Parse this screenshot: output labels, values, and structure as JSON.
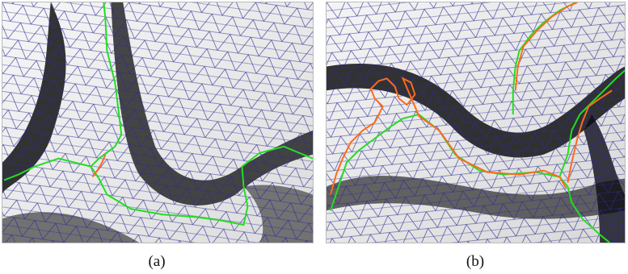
{
  "figure": {
    "panels": [
      {
        "caption": "(a)"
      },
      {
        "caption": "(b)"
      }
    ],
    "colors": {
      "mesh": "#2b2b9a",
      "path_primary": "#22dd22",
      "path_secondary": "#ff6a1a",
      "surface_light": "#f2f2f2",
      "surface_dark": "#0b0b14"
    }
  }
}
